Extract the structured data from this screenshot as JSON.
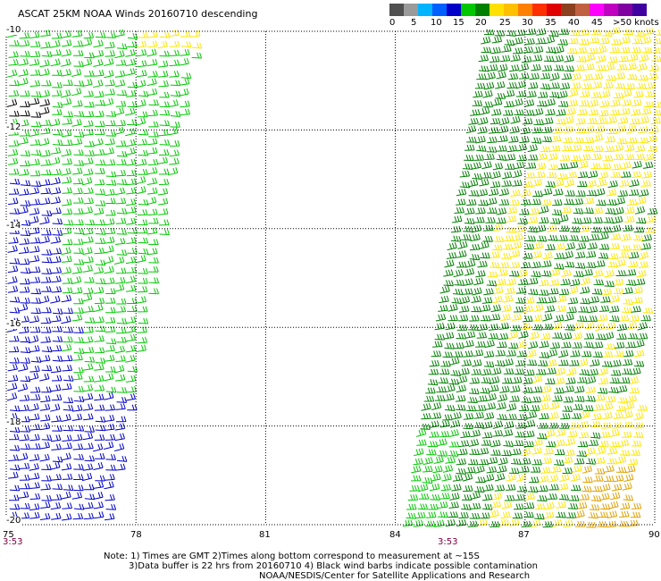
{
  "title": "ASCAT 25KM NOAA Winds 20160710 descending",
  "legend": {
    "colors": [
      "#505050",
      "#9a9a9a",
      "#00b4ff",
      "#0060ff",
      "#0000c8",
      "#00c800",
      "#008000",
      "#ffe000",
      "#ffc000",
      "#ff8000",
      "#ff3000",
      "#e00000",
      "#8b4020",
      "#c06040",
      "#ff00ff",
      "#c000c0",
      "#8000a0",
      "#4000a0"
    ],
    "labels": [
      "0",
      "5",
      "10",
      "15",
      "20",
      "25",
      "30",
      "35",
      "40",
      "45",
      ">50"
    ],
    "unit": "knots"
  },
  "map": {
    "lat_labels": [
      "-10",
      "-12",
      "-14",
      "-16",
      "-18",
      "-20"
    ],
    "lon_labels": [
      "75",
      "78",
      "81",
      "84",
      "87",
      "90"
    ],
    "lat_range": [
      -20,
      -10
    ],
    "lon_range": [
      75,
      90
    ],
    "grid": "dotted"
  },
  "swaths": {
    "time_left": "3:53",
    "time_right": "3:53"
  },
  "notes": {
    "line1": "Note: 1) Times are GMT 2)Times along bottom correspond to measurement at ~15S",
    "line2": "3)Data buffer is 22 hrs from 20160710 4) Black wind barbs indicate possible contamination",
    "line3": "NOAA/NESDIS/Center for Satellite Applications and Research"
  },
  "colors": {
    "blue": "#0000c8",
    "green_light": "#00c800",
    "green_dark": "#008000",
    "yellow": "#ffe600",
    "orange": "#e0a000",
    "black": "#000000"
  }
}
